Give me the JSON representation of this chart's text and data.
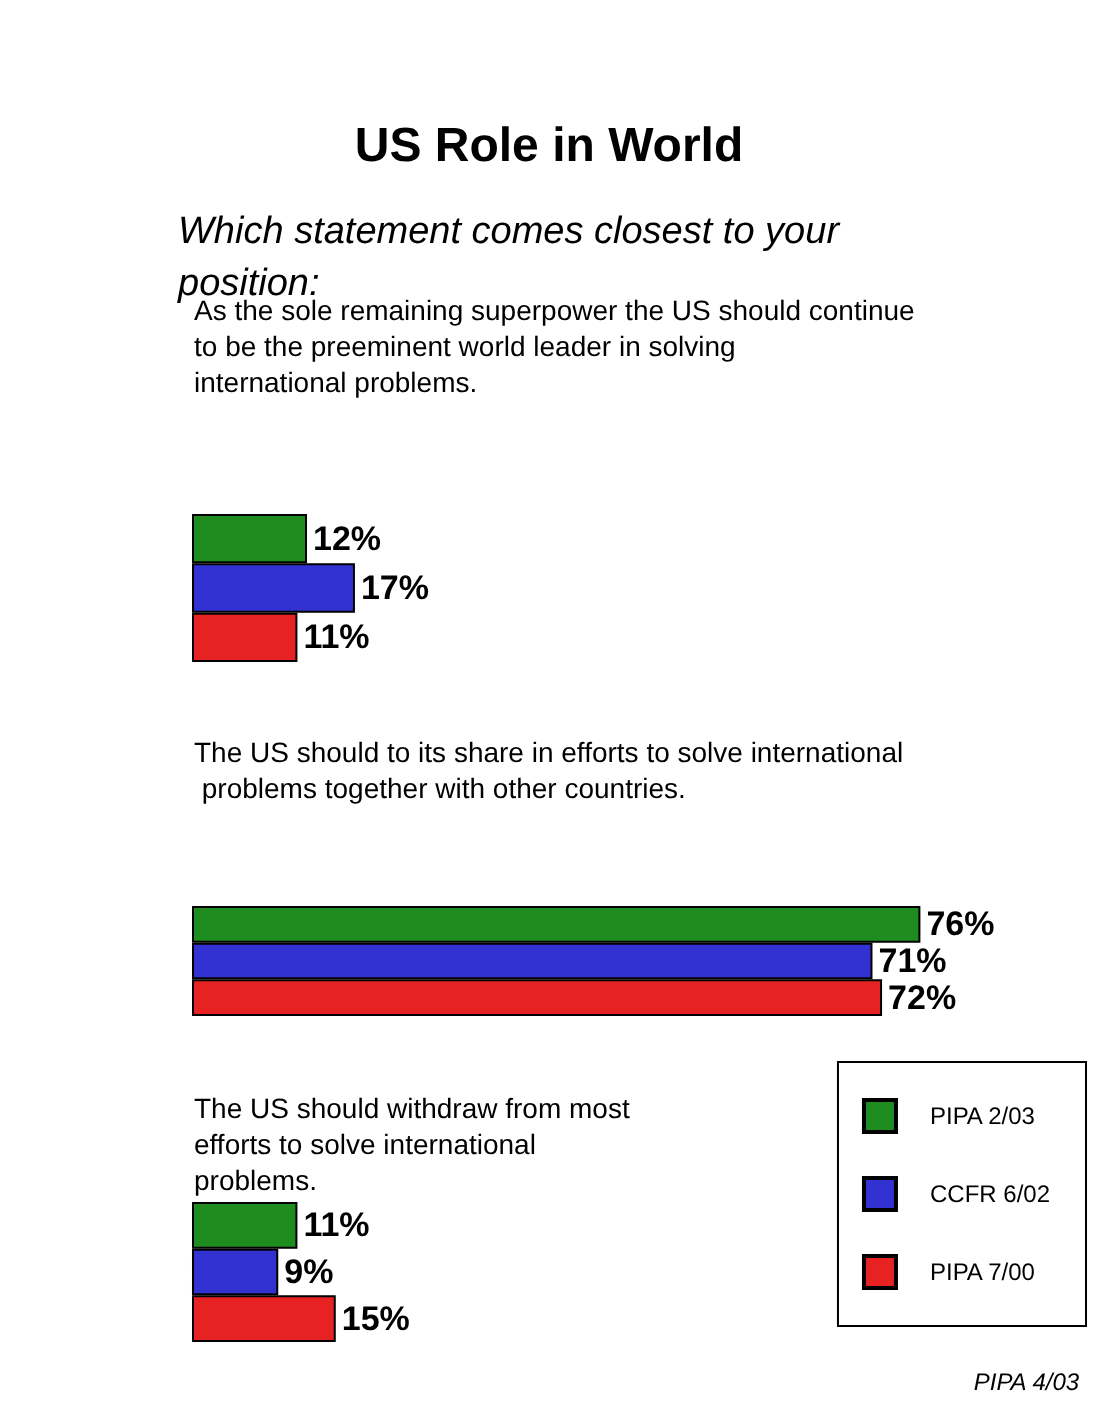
{
  "chart_data": {
    "type": "bar",
    "orientation": "horizontal",
    "title": "US Role in World",
    "subtitle": "Which statement comes closest to your position:",
    "categories": [
      "As the sole remaining superpower the US should continue to be the preeminent world leader in solving international problems.",
      "The US should to its share in efforts to solve international problems together with other countries.",
      "The US should withdraw from most efforts to solve international problems."
    ],
    "series": [
      {
        "name": "PIPA 2/03",
        "color": "#1e8c1e",
        "values": [
          12,
          76,
          11
        ],
        "value_labels": [
          "12%",
          "76%",
          "11%"
        ]
      },
      {
        "name": "CCFR 6/02",
        "color": "#3232d2",
        "values": [
          17,
          71,
          9
        ],
        "value_labels": [
          "17%",
          "71%",
          "9%"
        ]
      },
      {
        "name": "PIPA 7/00",
        "color": "#e62222",
        "values": [
          11,
          72,
          15
        ],
        "value_labels": [
          "11%",
          "72%",
          "15%"
        ]
      }
    ],
    "legend": "bottom right",
    "annotations": [
      "PIPA 4/03"
    ]
  }
}
